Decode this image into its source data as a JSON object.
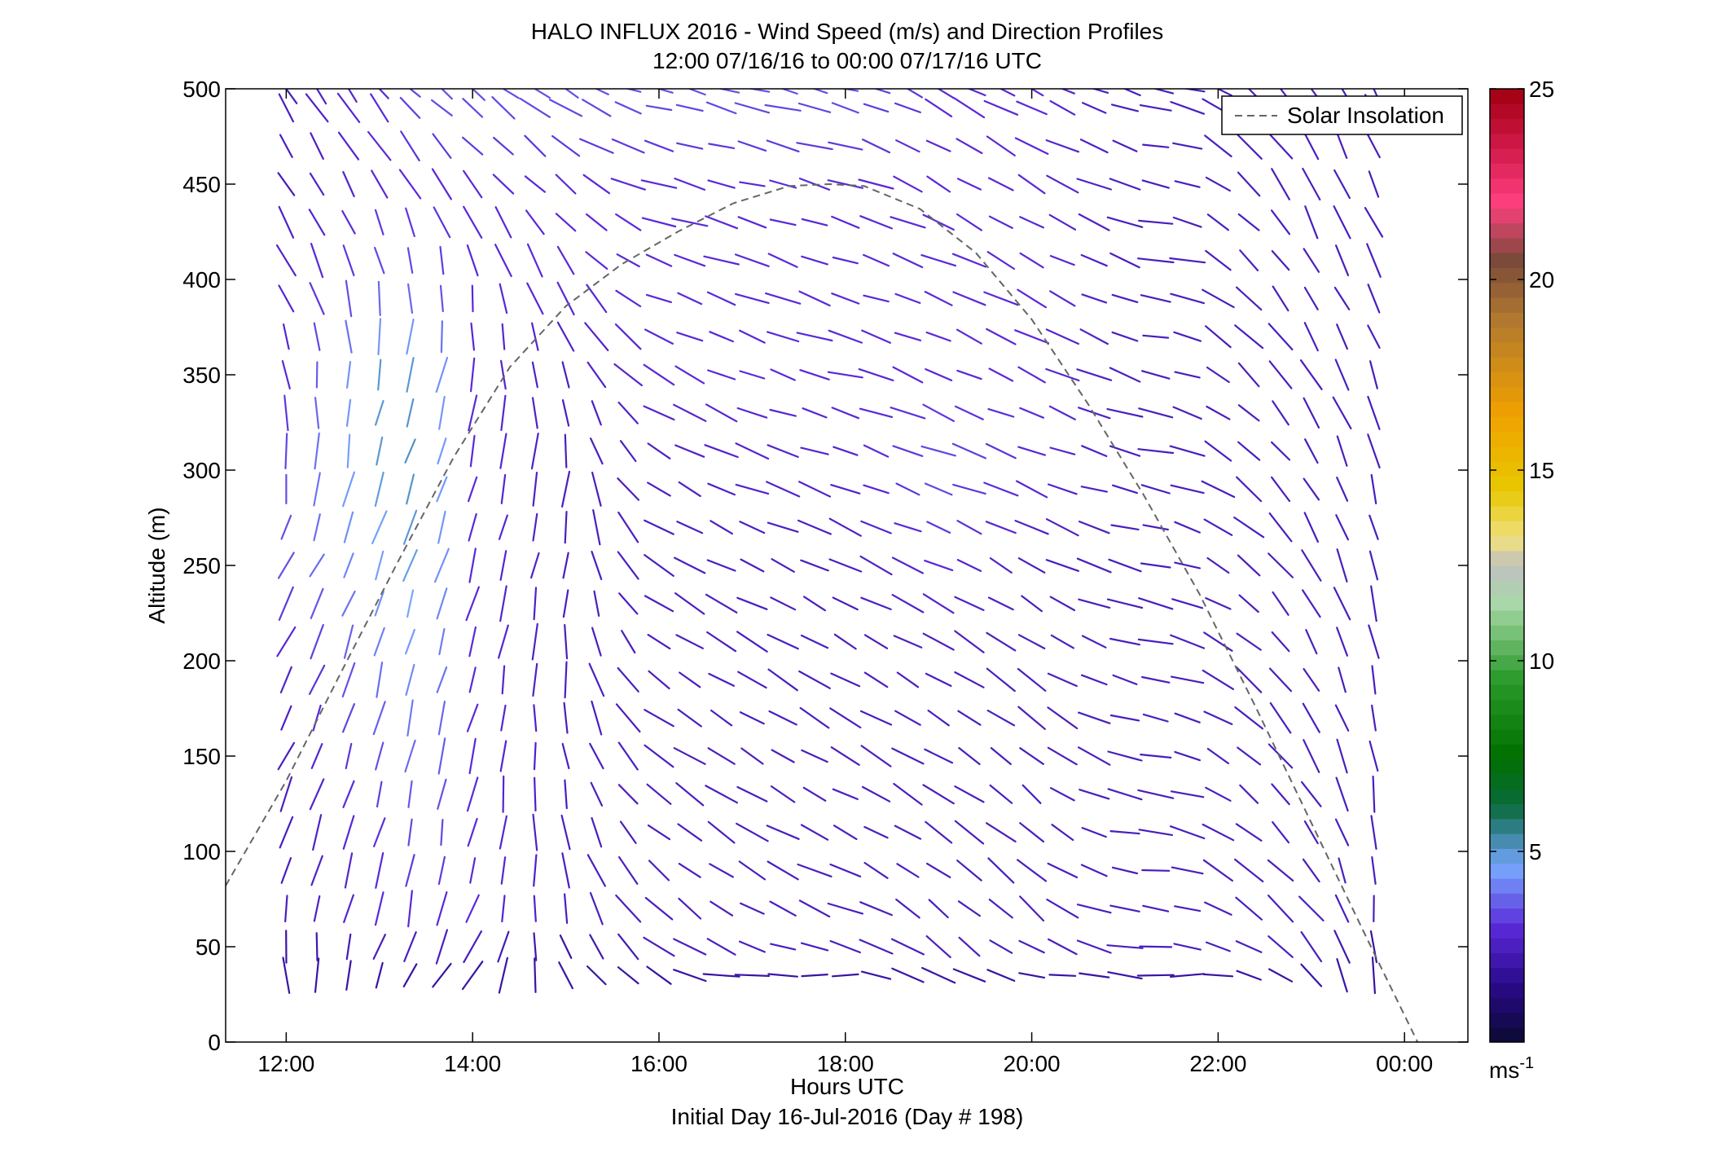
{
  "chart_data": {
    "type": "quiver",
    "title": "HALO INFLUX 2016 - Wind Speed (m/s) and Direction Profiles",
    "subtitle": "12:00 07/16/16 to 00:00 07/17/16  UTC",
    "xlabel": "Hours UTC",
    "xlabel2": "Initial Day 16-Jul-2016 (Day # 198)",
    "ylabel": "Altitude (m)",
    "xlim": [
      11.35,
      24.68
    ],
    "ylim": [
      0,
      500
    ],
    "x_ticks": [
      {
        "value": 12,
        "label": "12:00"
      },
      {
        "value": 14,
        "label": "14:00"
      },
      {
        "value": 16,
        "label": "16:00"
      },
      {
        "value": 18,
        "label": "18:00"
      },
      {
        "value": 20,
        "label": "20:00"
      },
      {
        "value": 22,
        "label": "22:00"
      },
      {
        "value": 24,
        "label": "00:00"
      }
    ],
    "y_ticks": [
      0,
      50,
      100,
      150,
      200,
      250,
      300,
      350,
      400,
      450,
      500
    ],
    "grid": false,
    "legend": {
      "position": "top-right",
      "entries": [
        {
          "name": "Solar Insolation",
          "style": "dashed",
          "color": "#666666"
        }
      ]
    },
    "colorbar": {
      "range": [
        0,
        25
      ],
      "ticks": [
        5,
        10,
        15,
        20,
        25
      ],
      "unit": "ms",
      "unit_exp": "-1",
      "stops": [
        {
          "v": 0,
          "c": "#0a0a33"
        },
        {
          "v": 1.5,
          "c": "#2a0a8a"
        },
        {
          "v": 3,
          "c": "#5a28d8"
        },
        {
          "v": 4.6,
          "c": "#78a8ff"
        },
        {
          "v": 5.6,
          "c": "#2f7f8a"
        },
        {
          "v": 6.2,
          "c": "#0a6a3a"
        },
        {
          "v": 7.5,
          "c": "#007000"
        },
        {
          "v": 9.5,
          "c": "#2a9a2a"
        },
        {
          "v": 11.5,
          "c": "#a8d8a8"
        },
        {
          "v": 12.5,
          "c": "#c0c0c0"
        },
        {
          "v": 13.2,
          "c": "#f0e080"
        },
        {
          "v": 14.5,
          "c": "#e8c800"
        },
        {
          "v": 16.5,
          "c": "#f0a000"
        },
        {
          "v": 19,
          "c": "#b07830"
        },
        {
          "v": 20.5,
          "c": "#7a4a3a"
        },
        {
          "v": 22,
          "c": "#ff4080"
        },
        {
          "v": 23.5,
          "c": "#d01848"
        },
        {
          "v": 25,
          "c": "#a00010"
        }
      ]
    },
    "series": [
      {
        "name": "Solar Insolation",
        "type": "line",
        "style": "dashed",
        "x": [
          11.35,
          12,
          12.6,
          13.2,
          13.8,
          14.4,
          15,
          15.6,
          16.2,
          16.8,
          17.4,
          17.83,
          18.2,
          18.8,
          19.4,
          20,
          20.6,
          21.2,
          21.8,
          22.4,
          23,
          23.6,
          24.2,
          24.65
        ],
        "y": [
          82,
          137,
          195,
          252,
          307,
          354,
          386,
          408,
          425,
          440,
          449,
          450,
          449,
          437,
          414,
          379,
          335,
          287,
          235,
          176,
          115,
          54,
          -6,
          -52
        ]
      }
    ],
    "wind": {
      "times": [
        12.0,
        12.33,
        12.67,
        13.0,
        13.33,
        13.67,
        14.0,
        14.33,
        14.67,
        15.0,
        15.33,
        15.67,
        16.0,
        16.33,
        16.67,
        17.0,
        17.33,
        17.67,
        18.0,
        18.33,
        18.67,
        19.0,
        19.33,
        19.67,
        20.0,
        20.33,
        20.67,
        21.0,
        21.33,
        21.67,
        22.0,
        22.33,
        22.67,
        23.0,
        23.33,
        23.67
      ],
      "altitudes": [
        35,
        50,
        70,
        90,
        110,
        130,
        150,
        170,
        190,
        210,
        230,
        250,
        270,
        290,
        310,
        330,
        350,
        370,
        390,
        410,
        430,
        450,
        470,
        490,
        500
      ],
      "profile_alt": [
        35,
        50,
        70,
        100,
        150,
        200,
        250,
        300,
        350,
        400,
        450,
        500
      ],
      "profiles": [
        {
          "t": 12.0,
          "dir": [
            350,
            355,
            10,
            20,
            25,
            25,
            30,
            0,
            350,
            330,
            330,
            330
          ],
          "spd": [
            2,
            2,
            2.5,
            2.5,
            2.5,
            2.8,
            3.5,
            3.5,
            3,
            2.8,
            2.5,
            2.5
          ]
        },
        {
          "t": 13.0,
          "dir": [
            20,
            20,
            15,
            15,
            15,
            15,
            20,
            15,
            10,
            350,
            330,
            320
          ],
          "spd": [
            2,
            2.5,
            3,
            3,
            3.5,
            4,
            4.5,
            5,
            5,
            3.5,
            3,
            3
          ]
        },
        {
          "t": 13.5,
          "dir": [
            30,
            20,
            10,
            5,
            10,
            15,
            20,
            20,
            15,
            355,
            330,
            310
          ],
          "spd": [
            2,
            2.5,
            3,
            3.5,
            4,
            4.5,
            5,
            5.2,
            5,
            3.5,
            3,
            3.5
          ]
        },
        {
          "t": 14.0,
          "dir": [
            40,
            30,
            20,
            15,
            15,
            15,
            15,
            15,
            5,
            350,
            320,
            310
          ],
          "spd": [
            2,
            2.5,
            3,
            3,
            3,
            3,
            3,
            3,
            3,
            3,
            3,
            3.5
          ]
        },
        {
          "t": 15.0,
          "dir": [
            330,
            340,
            350,
            350,
            350,
            0,
            10,
            5,
            340,
            330,
            310,
            300
          ],
          "spd": [
            2,
            2,
            2.5,
            2.5,
            2.5,
            2.5,
            2.5,
            2.5,
            2.5,
            3,
            3,
            3.5
          ]
        },
        {
          "t": 16.0,
          "dir": [
            300,
            305,
            310,
            310,
            305,
            305,
            300,
            300,
            300,
            290,
            285,
            285
          ],
          "spd": [
            2,
            2.5,
            2.5,
            2.5,
            2.5,
            2.5,
            2.5,
            2.5,
            3,
            3,
            3,
            3.5
          ]
        },
        {
          "t": 17.0,
          "dir": [
            270,
            290,
            300,
            300,
            300,
            300,
            295,
            290,
            290,
            290,
            285,
            285
          ],
          "spd": [
            2,
            2.5,
            2.5,
            2.5,
            2.5,
            2.5,
            2.5,
            2.8,
            3,
            3,
            3,
            3.5
          ]
        },
        {
          "t": 18.0,
          "dir": [
            270,
            285,
            290,
            295,
            300,
            300,
            295,
            290,
            285,
            290,
            285,
            285
          ],
          "spd": [
            2,
            2.5,
            2.5,
            2.5,
            2.5,
            2.5,
            2.5,
            2.8,
            3,
            3,
            3,
            3.5
          ]
        },
        {
          "t": 19.0,
          "dir": [
            300,
            310,
            310,
            305,
            300,
            300,
            295,
            290,
            295,
            290,
            300,
            300
          ],
          "spd": [
            2,
            2.5,
            2.5,
            2.5,
            2.5,
            2.5,
            3,
            3.5,
            3,
            3,
            3,
            3
          ]
        },
        {
          "t": 20.0,
          "dir": [
            280,
            300,
            310,
            310,
            310,
            305,
            300,
            290,
            295,
            300,
            300,
            295
          ],
          "spd": [
            2,
            2.5,
            2.5,
            2.5,
            2.5,
            2.5,
            2.5,
            3,
            3,
            3,
            3,
            3
          ]
        },
        {
          "t": 21.0,
          "dir": [
            275,
            280,
            280,
            280,
            285,
            285,
            285,
            285,
            290,
            290,
            290,
            290
          ],
          "spd": [
            2,
            2.5,
            2.5,
            2.5,
            2.5,
            2.5,
            2.5,
            2.5,
            2.5,
            2.5,
            2.5,
            2.5
          ]
        },
        {
          "t": 21.5,
          "dir": [
            270,
            270,
            275,
            275,
            280,
            280,
            280,
            280,
            280,
            270,
            275,
            275
          ],
          "spd": [
            2,
            2.5,
            2.5,
            2.5,
            2.5,
            2.5,
            2.5,
            2.5,
            2.5,
            2.5,
            2.5,
            2.5
          ]
        },
        {
          "t": 22.0,
          "dir": [
            270,
            290,
            300,
            300,
            300,
            300,
            300,
            300,
            305,
            305,
            305,
            300
          ],
          "spd": [
            2,
            2.5,
            2.5,
            2.5,
            2.5,
            2.5,
            2.5,
            2.5,
            2.5,
            2.5,
            2.5,
            2.5
          ]
        },
        {
          "t": 23.0,
          "dir": [
            320,
            320,
            320,
            325,
            330,
            330,
            330,
            330,
            330,
            330,
            335,
            330
          ],
          "spd": [
            2,
            2.5,
            2.5,
            2.5,
            2.5,
            2.5,
            2.5,
            2.5,
            2.5,
            2.5,
            2.5,
            2.5
          ]
        },
        {
          "t": 23.67,
          "dir": [
            355,
            355,
            355,
            355,
            350,
            350,
            345,
            345,
            340,
            335,
            335,
            330
          ],
          "spd": [
            2,
            2,
            2.5,
            2.5,
            2.5,
            2.5,
            2.5,
            2.5,
            2.5,
            2.5,
            2.5,
            2.5
          ]
        }
      ]
    }
  }
}
